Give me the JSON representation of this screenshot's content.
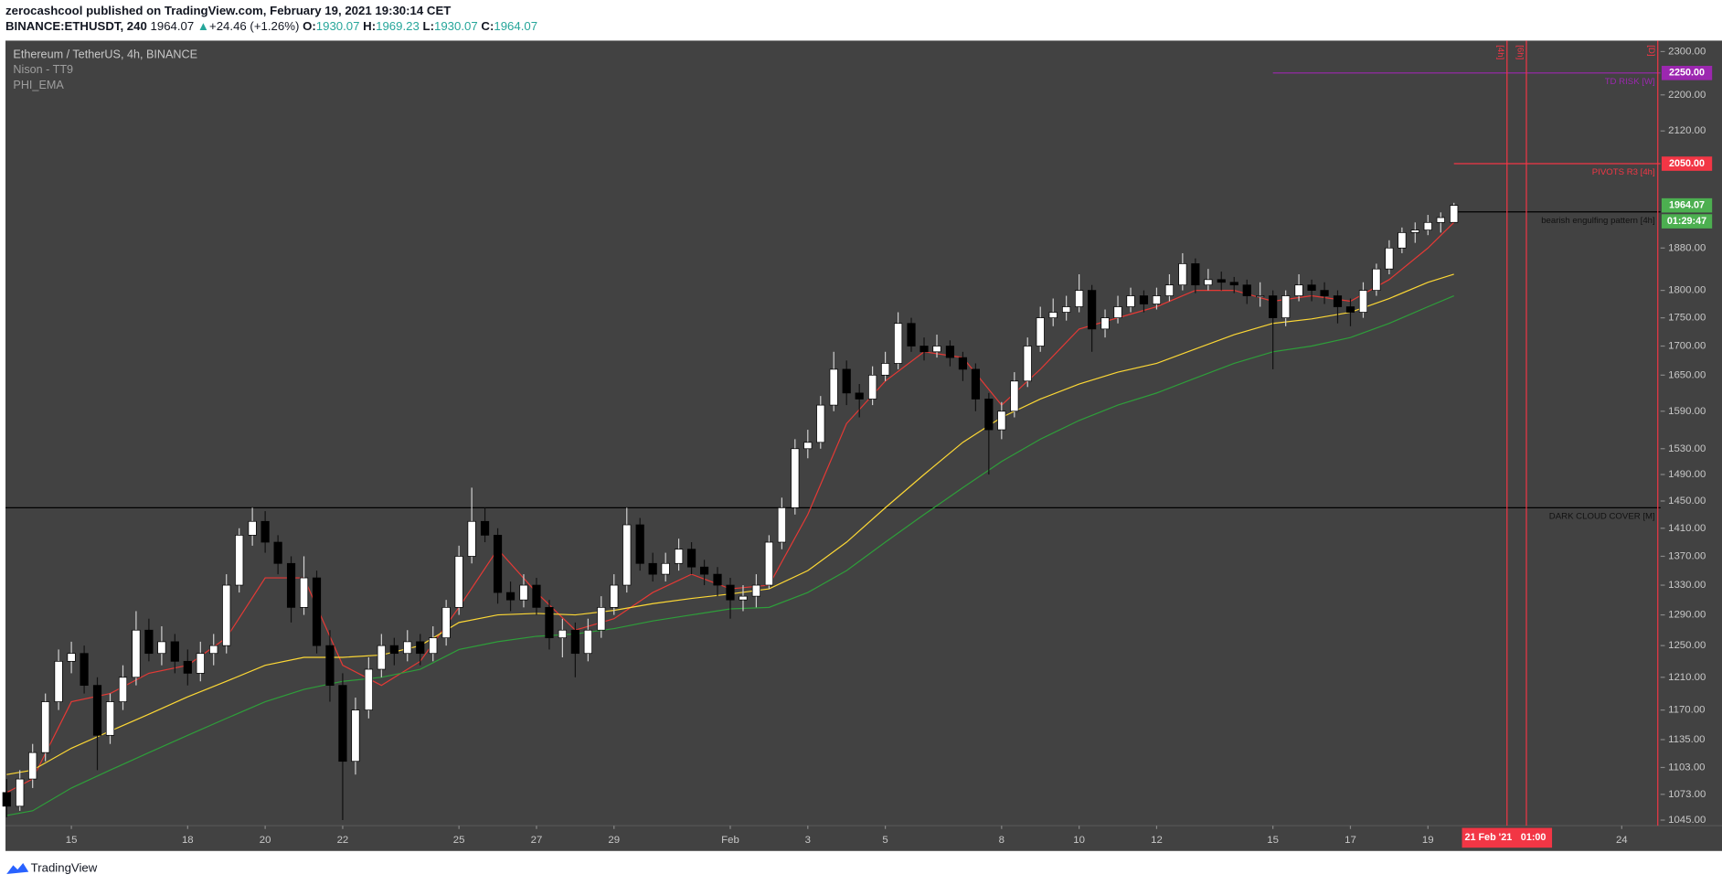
{
  "header": {
    "author_line": "zerocashcool published on TradingView.com, February 19, 2021 19:30:14 CET",
    "symbol": "BINANCE:ETHUSDT, 240",
    "last": "1964.07",
    "arrow": "▲",
    "change": "+24.46 (+1.26%)",
    "o_label": "O:",
    "o": "1930.07",
    "h_label": "H:",
    "h": "1969.23",
    "l_label": "L:",
    "l": "1930.07",
    "c_label": "C:",
    "c": "1964.07"
  },
  "footer": {
    "brand": "TradingView"
  },
  "chart_data": {
    "type": "candlestick",
    "title": "Ethereum / TetherUS, 4h, BINANCE",
    "indicators": [
      "Nison - TT9",
      "PHI_EMA"
    ],
    "ylog": true,
    "grid": false,
    "up_color": "#ffffff",
    "down_color": "#000000",
    "xlim": [
      13.3,
      56
    ],
    "ylim": [
      1039,
      2326
    ],
    "xticks": [
      15,
      18,
      20,
      22,
      25,
      27,
      29,
      {
        "value": 32,
        "label": "Feb"
      },
      {
        "value": 34,
        "label": "3"
      },
      {
        "value": 36,
        "label": "5"
      },
      {
        "value": 39,
        "label": "8"
      },
      {
        "value": 41,
        "label": "10"
      },
      {
        "value": 43,
        "label": "12"
      },
      {
        "value": 46,
        "label": "15"
      },
      {
        "value": 48,
        "label": "17"
      },
      {
        "value": 50,
        "label": "19"
      },
      {
        "value": 55,
        "label": "24"
      }
    ],
    "yticks": [
      {
        "value": 2300,
        "label": "2300.00"
      },
      {
        "value": 2200,
        "label": "2200.00"
      },
      {
        "value": 2120,
        "label": "2120.00"
      },
      {
        "value": 1880,
        "label": "1880.00"
      },
      {
        "value": 1800,
        "label": "1800.00"
      },
      {
        "value": 1750,
        "label": "1750.00"
      },
      {
        "value": 1700,
        "label": "1700.00"
      },
      {
        "value": 1650,
        "label": "1650.00"
      },
      {
        "value": 1590,
        "label": "1590.00"
      },
      {
        "value": 1530,
        "label": "1530.00"
      },
      {
        "value": 1490,
        "label": "1490.00"
      },
      {
        "value": 1450,
        "label": "1450.00"
      },
      {
        "value": 1410,
        "label": "1410.00"
      },
      {
        "value": 1370,
        "label": "1370.00"
      },
      {
        "value": 1330,
        "label": "1330.00"
      },
      {
        "value": 1290,
        "label": "1290.00"
      },
      {
        "value": 1250,
        "label": "1250.00"
      },
      {
        "value": 1210,
        "label": "1210.00"
      },
      {
        "value": 1170,
        "label": "1170.00"
      },
      {
        "value": 1135,
        "label": "1135.00"
      },
      {
        "value": 1103,
        "label": "1103.00"
      },
      {
        "value": 1073,
        "label": "1073.00"
      },
      {
        "value": 1045,
        "label": "1045.00"
      }
    ],
    "x": [
      13.33,
      13.67,
      14,
      14.33,
      14.67,
      15,
      15.33,
      15.67,
      16,
      16.33,
      16.67,
      17,
      17.33,
      17.67,
      18,
      18.33,
      18.67,
      19,
      19.33,
      19.67,
      20,
      20.33,
      20.67,
      21,
      21.33,
      21.67,
      22,
      22.33,
      22.67,
      23,
      23.33,
      23.67,
      24,
      24.33,
      24.67,
      25,
      25.33,
      25.67,
      26,
      26.33,
      26.67,
      27,
      27.33,
      27.67,
      28,
      28.33,
      28.67,
      29,
      29.33,
      29.67,
      30,
      30.33,
      30.67,
      31,
      31.33,
      31.67,
      32,
      32.33,
      32.67,
      33,
      33.33,
      33.67,
      34,
      34.33,
      34.67,
      35,
      35.33,
      35.67,
      36,
      36.33,
      36.67,
      37,
      37.33,
      37.67,
      38,
      38.33,
      38.67,
      39,
      39.33,
      39.67,
      40,
      40.33,
      40.67,
      41,
      41.33,
      41.67,
      42,
      42.33,
      42.67,
      43,
      43.33,
      43.67,
      44,
      44.33,
      44.67,
      45,
      45.33,
      45.67,
      46,
      46.33,
      46.67,
      47,
      47.33,
      47.67,
      48,
      48.33,
      48.67,
      49,
      49.33,
      49.67,
      50,
      50.33,
      50.67
    ],
    "ohlc": [
      [
        1075,
        1090,
        1048,
        1060
      ],
      [
        1060,
        1100,
        1055,
        1090
      ],
      [
        1090,
        1130,
        1080,
        1120
      ],
      [
        1120,
        1190,
        1110,
        1180
      ],
      [
        1180,
        1245,
        1170,
        1230
      ],
      [
        1230,
        1255,
        1215,
        1240
      ],
      [
        1240,
        1250,
        1190,
        1200
      ],
      [
        1200,
        1210,
        1100,
        1140
      ],
      [
        1140,
        1190,
        1130,
        1180
      ],
      [
        1180,
        1225,
        1170,
        1210
      ],
      [
        1210,
        1295,
        1200,
        1270
      ],
      [
        1270,
        1285,
        1230,
        1240
      ],
      [
        1240,
        1275,
        1225,
        1255
      ],
      [
        1255,
        1265,
        1215,
        1230
      ],
      [
        1230,
        1245,
        1200,
        1215
      ],
      [
        1215,
        1255,
        1205,
        1240
      ],
      [
        1240,
        1265,
        1225,
        1250
      ],
      [
        1250,
        1345,
        1240,
        1330
      ],
      [
        1330,
        1410,
        1320,
        1400
      ],
      [
        1400,
        1440,
        1385,
        1420
      ],
      [
        1420,
        1435,
        1375,
        1390
      ],
      [
        1390,
        1400,
        1345,
        1360
      ],
      [
        1360,
        1370,
        1280,
        1300
      ],
      [
        1300,
        1370,
        1290,
        1340
      ],
      [
        1340,
        1350,
        1240,
        1250
      ],
      [
        1250,
        1270,
        1180,
        1200
      ],
      [
        1200,
        1215,
        1045,
        1110
      ],
      [
        1110,
        1185,
        1095,
        1170
      ],
      [
        1170,
        1235,
        1160,
        1220
      ],
      [
        1220,
        1265,
        1210,
        1250
      ],
      [
        1250,
        1260,
        1225,
        1240
      ],
      [
        1240,
        1270,
        1230,
        1255
      ],
      [
        1255,
        1265,
        1225,
        1240
      ],
      [
        1240,
        1275,
        1230,
        1260
      ],
      [
        1260,
        1310,
        1250,
        1300
      ],
      [
        1300,
        1385,
        1290,
        1370
      ],
      [
        1370,
        1470,
        1360,
        1420
      ],
      [
        1420,
        1440,
        1390,
        1400
      ],
      [
        1400,
        1410,
        1305,
        1320
      ],
      [
        1320,
        1335,
        1295,
        1310
      ],
      [
        1310,
        1345,
        1300,
        1330
      ],
      [
        1330,
        1340,
        1290,
        1300
      ],
      [
        1300,
        1310,
        1245,
        1260
      ],
      [
        1260,
        1285,
        1235,
        1270
      ],
      [
        1270,
        1280,
        1210,
        1240
      ],
      [
        1240,
        1285,
        1230,
        1270
      ],
      [
        1270,
        1315,
        1260,
        1300
      ],
      [
        1300,
        1345,
        1290,
        1330
      ],
      [
        1330,
        1440,
        1320,
        1415
      ],
      [
        1415,
        1425,
        1350,
        1360
      ],
      [
        1360,
        1375,
        1335,
        1345
      ],
      [
        1345,
        1375,
        1335,
        1360
      ],
      [
        1360,
        1395,
        1350,
        1380
      ],
      [
        1380,
        1390,
        1345,
        1355
      ],
      [
        1355,
        1365,
        1330,
        1345
      ],
      [
        1345,
        1355,
        1315,
        1330
      ],
      [
        1330,
        1340,
        1285,
        1310
      ],
      [
        1310,
        1330,
        1295,
        1315
      ],
      [
        1315,
        1345,
        1300,
        1330
      ],
      [
        1330,
        1400,
        1325,
        1390
      ],
      [
        1390,
        1455,
        1380,
        1440
      ],
      [
        1440,
        1545,
        1430,
        1530
      ],
      [
        1530,
        1560,
        1515,
        1540
      ],
      [
        1540,
        1615,
        1530,
        1600
      ],
      [
        1600,
        1690,
        1590,
        1660
      ],
      [
        1660,
        1675,
        1600,
        1620
      ],
      [
        1620,
        1635,
        1580,
        1610
      ],
      [
        1610,
        1665,
        1600,
        1650
      ],
      [
        1650,
        1690,
        1640,
        1670
      ],
      [
        1670,
        1760,
        1660,
        1740
      ],
      [
        1740,
        1750,
        1690,
        1700
      ],
      [
        1700,
        1715,
        1675,
        1690
      ],
      [
        1690,
        1720,
        1680,
        1700
      ],
      [
        1700,
        1710,
        1665,
        1680
      ],
      [
        1680,
        1690,
        1640,
        1660
      ],
      [
        1660,
        1670,
        1590,
        1610
      ],
      [
        1610,
        1620,
        1490,
        1560
      ],
      [
        1560,
        1605,
        1545,
        1590
      ],
      [
        1590,
        1655,
        1580,
        1640
      ],
      [
        1640,
        1715,
        1630,
        1700
      ],
      [
        1700,
        1770,
        1690,
        1750
      ],
      [
        1750,
        1785,
        1735,
        1760
      ],
      [
        1760,
        1790,
        1745,
        1770
      ],
      [
        1770,
        1830,
        1760,
        1800
      ],
      [
        1800,
        1810,
        1690,
        1730
      ],
      [
        1730,
        1765,
        1715,
        1750
      ],
      [
        1750,
        1790,
        1740,
        1770
      ],
      [
        1770,
        1805,
        1760,
        1790
      ],
      [
        1790,
        1800,
        1760,
        1775
      ],
      [
        1775,
        1805,
        1765,
        1790
      ],
      [
        1790,
        1830,
        1780,
        1810
      ],
      [
        1810,
        1870,
        1800,
        1850
      ],
      [
        1850,
        1860,
        1795,
        1810
      ],
      [
        1810,
        1840,
        1800,
        1820
      ],
      [
        1820,
        1835,
        1800,
        1815
      ],
      [
        1815,
        1825,
        1795,
        1810
      ],
      [
        1810,
        1820,
        1775,
        1790
      ],
      [
        1790,
        1815,
        1770,
        1790
      ],
      [
        1790,
        1800,
        1660,
        1750
      ],
      [
        1750,
        1800,
        1735,
        1790
      ],
      [
        1790,
        1830,
        1780,
        1810
      ],
      [
        1810,
        1820,
        1780,
        1800
      ],
      [
        1800,
        1815,
        1775,
        1790
      ],
      [
        1790,
        1800,
        1740,
        1770
      ],
      [
        1770,
        1785,
        1735,
        1760
      ],
      [
        1760,
        1815,
        1750,
        1800
      ],
      [
        1800,
        1850,
        1790,
        1840
      ],
      [
        1840,
        1895,
        1830,
        1880
      ],
      [
        1880,
        1920,
        1870,
        1910
      ],
      [
        1910,
        1930,
        1890,
        1915
      ],
      [
        1915,
        1945,
        1905,
        1930
      ],
      [
        1930,
        1950,
        1910,
        1939.61
      ],
      [
        1930.07,
        1969.23,
        1930.07,
        1964.07
      ]
    ],
    "lines": [
      {
        "color": "#e53935",
        "x": [
          13.33,
          14,
          15,
          16,
          17,
          18,
          19,
          20,
          21,
          22,
          23,
          24,
          25,
          26,
          27,
          28,
          29,
          30,
          31,
          32,
          33,
          34,
          35,
          36,
          37,
          38,
          39,
          40,
          41,
          42,
          43,
          44,
          45,
          46,
          47,
          48,
          49,
          50,
          50.67
        ],
        "values": [
          1075,
          1090,
          1180,
          1190,
          1215,
          1225,
          1260,
          1340,
          1340,
          1225,
          1200,
          1230,
          1300,
          1380,
          1320,
          1270,
          1285,
          1320,
          1345,
          1325,
          1330,
          1430,
          1570,
          1640,
          1690,
          1680,
          1600,
          1660,
          1730,
          1750,
          1770,
          1800,
          1800,
          1780,
          1790,
          1780,
          1820,
          1880,
          1930
        ]
      },
      {
        "color": "#fdd835",
        "x": [
          13.33,
          14,
          15,
          16,
          17,
          18,
          19,
          20,
          21,
          22,
          23,
          24,
          25,
          26,
          27,
          28,
          29,
          30,
          31,
          32,
          33,
          34,
          35,
          36,
          37,
          38,
          39,
          40,
          41,
          42,
          43,
          44,
          45,
          46,
          47,
          48,
          49,
          50,
          50.67
        ],
        "values": [
          1095,
          1100,
          1125,
          1145,
          1165,
          1186,
          1205,
          1225,
          1235,
          1235,
          1238,
          1250,
          1280,
          1290,
          1292,
          1290,
          1296,
          1305,
          1312,
          1318,
          1325,
          1350,
          1390,
          1440,
          1490,
          1540,
          1580,
          1610,
          1635,
          1655,
          1670,
          1695,
          1720,
          1740,
          1748,
          1760,
          1785,
          1815,
          1830
        ]
      },
      {
        "color": "#2e9e3a",
        "x": [
          13.33,
          14,
          15,
          16,
          17,
          18,
          19,
          20,
          21,
          22,
          23,
          24,
          25,
          26,
          27,
          28,
          29,
          30,
          31,
          32,
          33,
          34,
          35,
          36,
          37,
          38,
          39,
          40,
          41,
          42,
          43,
          44,
          45,
          46,
          47,
          48,
          49,
          50,
          50.67
        ],
        "values": [
          1050,
          1055,
          1080,
          1100,
          1120,
          1140,
          1160,
          1180,
          1195,
          1205,
          1210,
          1220,
          1245,
          1255,
          1262,
          1265,
          1272,
          1282,
          1290,
          1298,
          1300,
          1320,
          1350,
          1390,
          1430,
          1470,
          1510,
          1545,
          1575,
          1600,
          1620,
          1645,
          1670,
          1690,
          1700,
          1715,
          1740,
          1770,
          1790
        ]
      }
    ],
    "hlines": [
      {
        "value": 2250,
        "start": 46,
        "color": "#9c27b0",
        "label": "TD RISK [W]",
        "tag": "2250.00"
      },
      {
        "value": 2050,
        "start": 50.67,
        "color": "#f23645",
        "label": "PIVOTS R3 [4h]",
        "tag": "2050.00"
      },
      {
        "value": 1951,
        "start": 50.67,
        "color": "#000000",
        "label": "bearish engulfing pattern [4h]"
      },
      {
        "value": 1440,
        "start": 13.3,
        "color": "#000000",
        "label": "DARK CLOUD COVER [M]"
      }
    ],
    "last_price": {
      "value": 1964.07,
      "label": "1964.07",
      "countdown": "01:29:47",
      "color": "#4caf50"
    },
    "vlines": [
      {
        "x": 52.04,
        "label": "[4h]"
      },
      {
        "x": 52.54,
        "label": "[6h]"
      },
      {
        "x": 55.93,
        "label": "[D]"
      }
    ],
    "vline_color": "#f23645",
    "cursor": {
      "x": 52.04,
      "date": "21 Feb '21",
      "time": "01:00"
    }
  }
}
